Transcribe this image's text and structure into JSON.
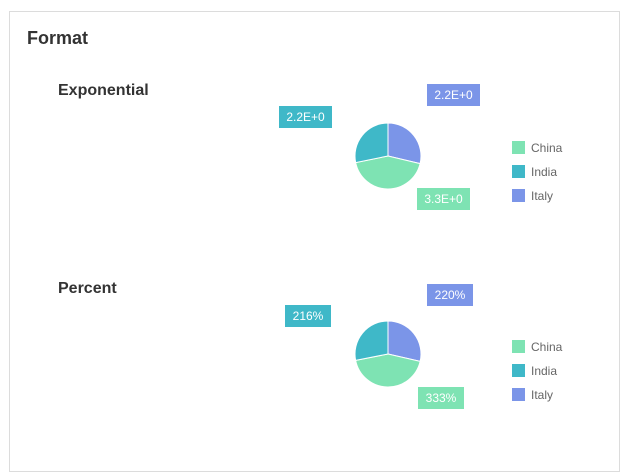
{
  "header": {
    "title": "Format"
  },
  "colors": {
    "China": "#7ee3b3",
    "India": "#3fb8c8",
    "Italy": "#7b95e8"
  },
  "chart_data": [
    {
      "type": "pie",
      "title": "Exponential",
      "categories": [
        "China",
        "India",
        "Italy"
      ],
      "values": [
        3.3,
        2.16,
        2.2
      ],
      "labels": [
        "3.3E+0",
        "2.2E+0",
        "2.2E+0"
      ],
      "legend": [
        "China",
        "India",
        "Italy"
      ],
      "legend_position": "right"
    },
    {
      "type": "pie",
      "title": "Percent",
      "categories": [
        "China",
        "India",
        "Italy"
      ],
      "values": [
        3.33,
        2.16,
        2.2
      ],
      "labels": [
        "333%",
        "216%",
        "220%"
      ],
      "legend": [
        "China",
        "India",
        "Italy"
      ],
      "legend_position": "right"
    }
  ]
}
